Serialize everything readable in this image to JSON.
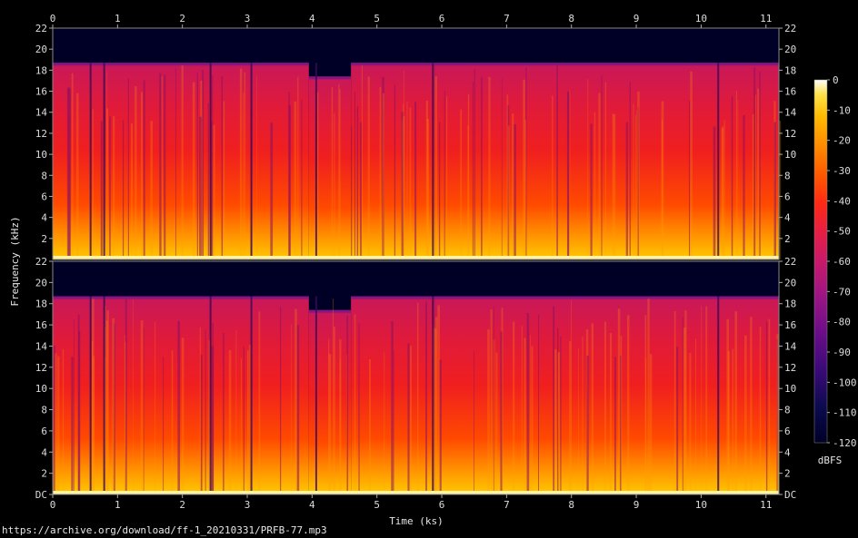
{
  "chart_data": {
    "type": "heatmap",
    "description_type": "spectrogram",
    "x_axis": {
      "label": "Time (ks)",
      "ticks": [
        "0",
        "1",
        "2",
        "3",
        "4",
        "5",
        "6",
        "7",
        "8",
        "9",
        "10",
        "11"
      ],
      "range": [
        0,
        11.2
      ]
    },
    "y_axis": {
      "label": "Frequency (kHz)",
      "ticks_top": [
        "2",
        "4",
        "6",
        "8",
        "10",
        "12",
        "14",
        "16",
        "18",
        "20",
        "22"
      ],
      "ticks_bottom": [
        "DC",
        "2",
        "4",
        "6",
        "8",
        "10",
        "12",
        "14",
        "16",
        "18",
        "20",
        "22"
      ],
      "range": [
        0,
        22
      ]
    },
    "colorbar": {
      "label": "dBFS",
      "ticks": [
        "0",
        "-10",
        "-20",
        "-30",
        "-40",
        "-50",
        "-60",
        "-70",
        "-80",
        "-90",
        "-100",
        "-110",
        "-120"
      ],
      "range": [
        -120,
        0
      ],
      "colors": [
        "#000026",
        "#0d0a50",
        "#3a0a78",
        "#6a0d88",
        "#9a1585",
        "#c81a6a",
        "#e61e45",
        "#ff2a14",
        "#ff5a00",
        "#ff8c00",
        "#ffbb00",
        "#ffe34a",
        "#ffffff"
      ]
    },
    "channels": 2,
    "cutoff_khz": 18.7,
    "segments_ks": [
      {
        "start": 0.0,
        "end": 3.95,
        "cutoff_khz": 18.7
      },
      {
        "start": 3.95,
        "end": 4.6,
        "cutoff_khz": 17.4
      },
      {
        "start": 4.6,
        "end": 5.9,
        "cutoff_khz": 18.7
      },
      {
        "start": 5.9,
        "end": 11.2,
        "cutoff_khz": 18.7
      }
    ]
  },
  "footer": {
    "url": "https://archive.org/download/ff-1_20210331/PRFB-77.mp3"
  }
}
